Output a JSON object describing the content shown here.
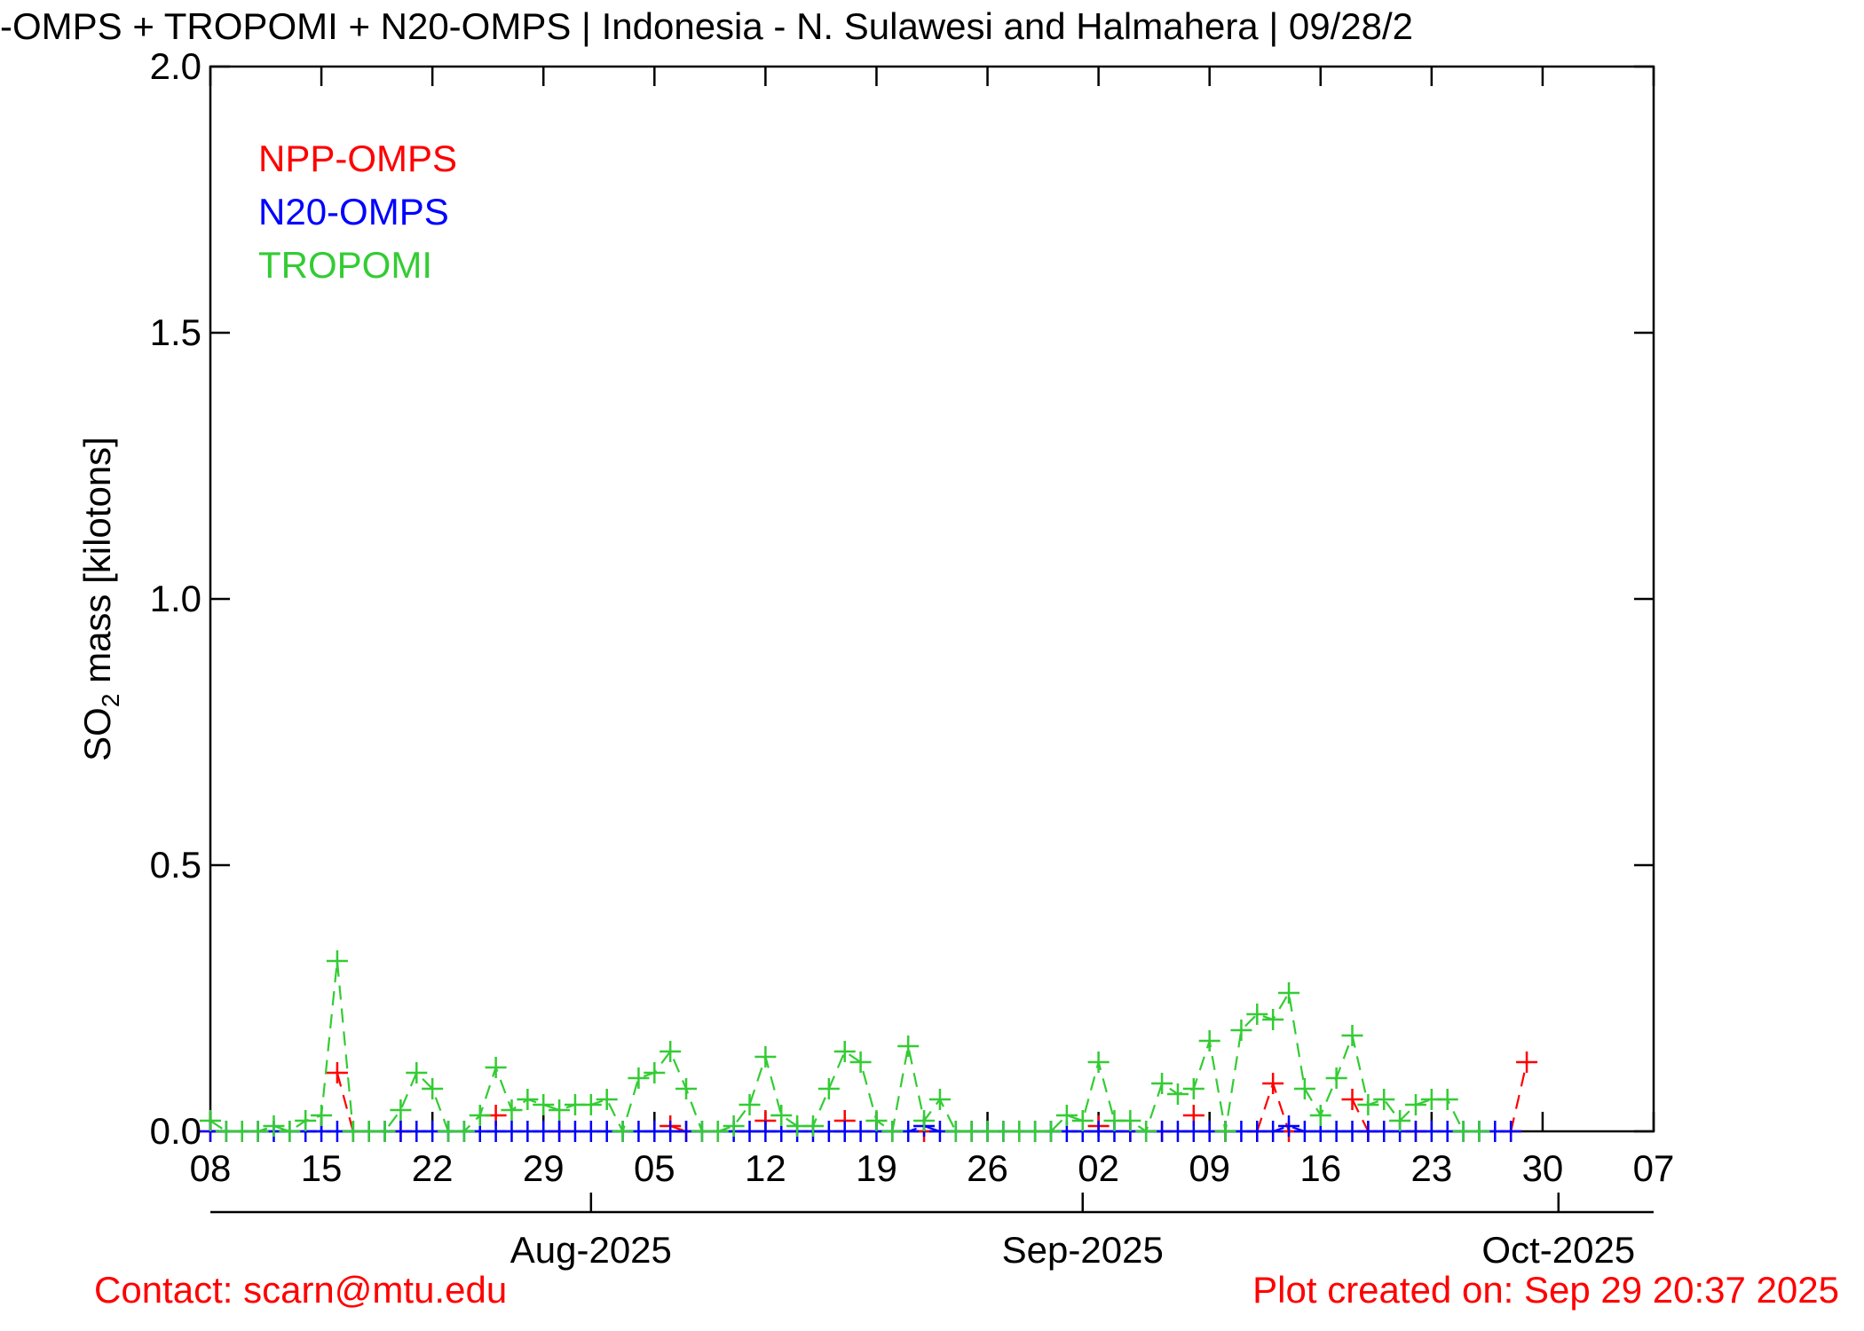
{
  "chart_data": {
    "type": "line",
    "title": "-OMPS + TROPOMI + N20-OMPS | Indonesia - N. Sulawesi and Halmahera | 09/28/2",
    "y_label": {
      "main": "SO",
      "sub": "2",
      "rest": " mass [kilotons]"
    },
    "footer_left": "Contact: scarn@mtu.edu",
    "footer_right": "Plot created on: Sep 29 20:37 2025",
    "xlim": [
      "2025-07-08",
      "2025-10-07"
    ],
    "ylim": [
      0,
      2
    ],
    "yticks": [
      {
        "value": 0,
        "label": "0.0"
      },
      {
        "value": 0.5,
        "label": "0.5"
      },
      {
        "value": 1,
        "label": "1.0"
      },
      {
        "value": 1.5,
        "label": "1.5"
      },
      {
        "value": 2,
        "label": "2.0"
      }
    ],
    "xticks": [
      {
        "value": "2025-07-08",
        "label": "08"
      },
      {
        "value": "2025-07-15",
        "label": "15"
      },
      {
        "value": "2025-07-22",
        "label": "22"
      },
      {
        "value": "2025-07-29",
        "label": "29"
      },
      {
        "value": "2025-08-05",
        "label": "05"
      },
      {
        "value": "2025-08-12",
        "label": "12"
      },
      {
        "value": "2025-08-19",
        "label": "19"
      },
      {
        "value": "2025-08-26",
        "label": "26"
      },
      {
        "value": "2025-09-02",
        "label": "02"
      },
      {
        "value": "2025-09-09",
        "label": "09"
      },
      {
        "value": "2025-09-16",
        "label": "16"
      },
      {
        "value": "2025-09-23",
        "label": "23"
      },
      {
        "value": "2025-09-30",
        "label": "30"
      },
      {
        "value": "2025-10-07",
        "label": "07"
      }
    ],
    "month_ticks": [
      {
        "value": "2025-08-01",
        "label": "Aug-2025"
      },
      {
        "value": "2025-09-01",
        "label": "Sep-2025"
      },
      {
        "value": "2025-10-01",
        "label": "Oct-2025"
      }
    ],
    "legend": "top-left",
    "x": [
      "2025-07-08",
      "2025-07-09",
      "2025-07-10",
      "2025-07-11",
      "2025-07-12",
      "2025-07-13",
      "2025-07-14",
      "2025-07-15",
      "2025-07-16",
      "2025-07-17",
      "2025-07-18",
      "2025-07-19",
      "2025-07-20",
      "2025-07-21",
      "2025-07-22",
      "2025-07-23",
      "2025-07-24",
      "2025-07-25",
      "2025-07-26",
      "2025-07-27",
      "2025-07-28",
      "2025-07-29",
      "2025-07-30",
      "2025-07-31",
      "2025-08-01",
      "2025-08-02",
      "2025-08-03",
      "2025-08-04",
      "2025-08-05",
      "2025-08-06",
      "2025-08-07",
      "2025-08-08",
      "2025-08-09",
      "2025-08-10",
      "2025-08-11",
      "2025-08-12",
      "2025-08-13",
      "2025-08-14",
      "2025-08-15",
      "2025-08-16",
      "2025-08-17",
      "2025-08-18",
      "2025-08-19",
      "2025-08-20",
      "2025-08-21",
      "2025-08-22",
      "2025-08-23",
      "2025-08-24",
      "2025-08-25",
      "2025-08-26",
      "2025-08-27",
      "2025-08-28",
      "2025-08-29",
      "2025-08-30",
      "2025-08-31",
      "2025-09-01",
      "2025-09-02",
      "2025-09-03",
      "2025-09-04",
      "2025-09-05",
      "2025-09-06",
      "2025-09-07",
      "2025-09-08",
      "2025-09-09",
      "2025-09-10",
      "2025-09-11",
      "2025-09-12",
      "2025-09-13",
      "2025-09-14",
      "2025-09-15",
      "2025-09-16",
      "2025-09-17",
      "2025-09-18",
      "2025-09-19",
      "2025-09-20",
      "2025-09-21",
      "2025-09-22",
      "2025-09-23",
      "2025-09-24",
      "2025-09-25",
      "2025-09-26",
      "2025-09-27",
      "2025-09-28",
      "2025-09-29"
    ],
    "series": [
      {
        "name": "NPP-OMPS",
        "color": "#ff0000",
        "values": [
          0,
          null,
          null,
          null,
          null,
          null,
          null,
          null,
          0.11,
          0,
          null,
          null,
          0,
          null,
          null,
          null,
          null,
          null,
          0.03,
          null,
          null,
          null,
          0,
          null,
          null,
          null,
          null,
          null,
          null,
          0.01,
          0,
          null,
          null,
          null,
          null,
          0.02,
          null,
          null,
          null,
          null,
          0.02,
          null,
          null,
          null,
          null,
          0,
          null,
          null,
          0,
          null,
          null,
          null,
          null,
          null,
          null,
          null,
          0.01,
          null,
          0,
          null,
          0,
          null,
          0.03,
          null,
          0,
          null,
          0,
          0.09,
          0,
          null,
          null,
          null,
          0.06,
          0,
          null,
          null,
          0,
          null,
          null,
          null,
          null,
          null,
          0,
          0.13
        ]
      },
      {
        "name": "N20-OMPS",
        "color": "#0000ff",
        "values": [
          0,
          0,
          0,
          0,
          0,
          0,
          0,
          0,
          0,
          0,
          0,
          0,
          0,
          0,
          0,
          0,
          0,
          0,
          0,
          0,
          0,
          0,
          0,
          0,
          0,
          0,
          0,
          0,
          0,
          0,
          0,
          0,
          0,
          0,
          0,
          0,
          0,
          0,
          0,
          0,
          0,
          0,
          0,
          0,
          0,
          0.01,
          0,
          0,
          0,
          0,
          0,
          0,
          0,
          0,
          0,
          0,
          0,
          0,
          0,
          0,
          0,
          0,
          0,
          0,
          0,
          0,
          0,
          0,
          0.01,
          0,
          0,
          0,
          0,
          0,
          0,
          0,
          0,
          0,
          0,
          0,
          0,
          0,
          0,
          null
        ]
      },
      {
        "name": "TROPOMI",
        "color": "#33cc33",
        "values": [
          0.02,
          0,
          0,
          0,
          0.01,
          0,
          0.02,
          0.03,
          0.32,
          0,
          0,
          0,
          0.04,
          0.11,
          0.08,
          0,
          0,
          0.03,
          0.12,
          0.04,
          0.06,
          0.05,
          0.04,
          0.05,
          0.05,
          0.06,
          0,
          0.1,
          0.11,
          0.15,
          0.08,
          0,
          0,
          0.01,
          0.05,
          0.14,
          0.03,
          0.01,
          0.01,
          0.08,
          0.15,
          0.13,
          0.02,
          0,
          0.16,
          0.02,
          0.06,
          0,
          0,
          0,
          0,
          0,
          0,
          0,
          0.03,
          0.02,
          0.13,
          0.02,
          0.02,
          0,
          0.09,
          0.07,
          0.08,
          0.17,
          0,
          0.19,
          0.22,
          0.21,
          0.26,
          0.08,
          0.03,
          0.1,
          0.18,
          0.05,
          0.06,
          0.02,
          0.05,
          0.06,
          0.06,
          0,
          0,
          null,
          null,
          null
        ]
      }
    ]
  }
}
